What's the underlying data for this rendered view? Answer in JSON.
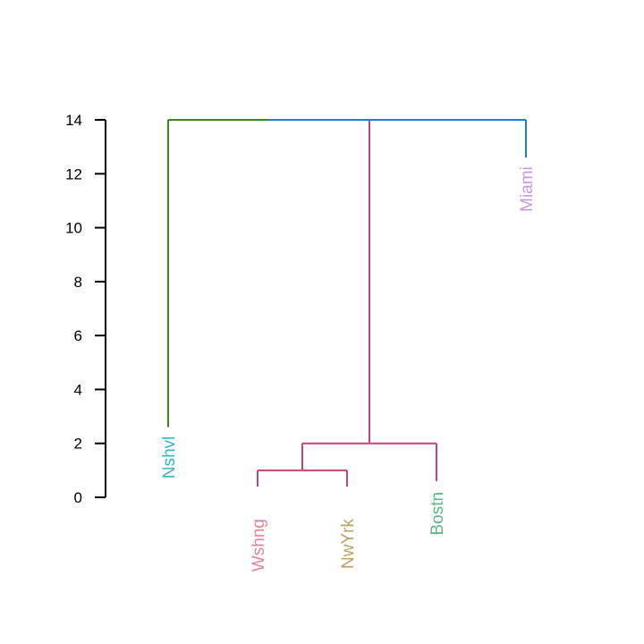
{
  "chart_data": {
    "type": "dendrogram",
    "title": "",
    "xlabel": "",
    "ylabel": "",
    "ylim": [
      0,
      14
    ],
    "yticks": [
      0,
      2,
      4,
      6,
      8,
      10,
      12,
      14
    ],
    "leaves": [
      {
        "name": "Nshvl",
        "order": 1,
        "label_color": "#35b7c4"
      },
      {
        "name": "Wshng",
        "order": 2,
        "label_color": "#e8829a"
      },
      {
        "name": "NwYrk",
        "order": 3,
        "label_color": "#b9a35e"
      },
      {
        "name": "Bostn",
        "order": 4,
        "label_color": "#5db882"
      },
      {
        "name": "Miami",
        "order": 5,
        "label_color": "#c39be0"
      }
    ],
    "merges": [
      {
        "left": "Wshng",
        "right": "NwYrk",
        "height": 1.0,
        "color": "#c9446e"
      },
      {
        "left": "Wshng+NwYrk",
        "right": "Bostn",
        "height": 2.0,
        "color": "#c9446e"
      },
      {
        "left": "Nshvl",
        "right": "Wshng+NwYrk+Bostn",
        "height": 14.0,
        "color_left": "#3a8a1a",
        "color_right": "#1f7fd0"
      },
      {
        "left": "Nshvl+Wshng+NwYrk+Bostn",
        "right": "Miami",
        "height": 14.0,
        "color": "#1f7fd0"
      }
    ],
    "leaf_heights": {
      "Nshvl": 2.6,
      "Wshng": 0.0,
      "NwYrk": 0.0,
      "Bostn": 0.6,
      "Miami": 12.6
    },
    "branch_colors": {
      "nashville": "#3a8a1a",
      "cluster": "#c9446e",
      "top": "#1f7fd0"
    }
  }
}
